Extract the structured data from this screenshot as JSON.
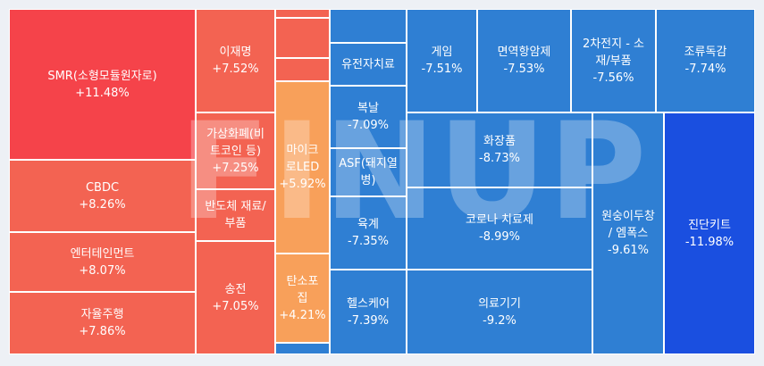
{
  "watermark": "FINUP",
  "chart_data": {
    "type": "treemap",
    "groups": [
      {
        "column": "rise-col-1",
        "items": [
          {
            "name": "SMR(소형모듈원자로)",
            "value": "+11.48%",
            "color": "#f5434a"
          },
          {
            "name": "CBDC",
            "value": "+8.26%",
            "color": "#f36352"
          },
          {
            "name": "엔터테인먼트",
            "value": "+8.07%",
            "color": "#f36352"
          },
          {
            "name": "자율주행",
            "value": "+7.86%",
            "color": "#f36352"
          }
        ]
      },
      {
        "column": "rise-col-2",
        "items": [
          {
            "name": "이재명",
            "value": "+7.52%",
            "color": "#f36352"
          },
          {
            "name": "가상화폐(비트코인 등)",
            "value": "+7.25%",
            "color": "#f36352"
          },
          {
            "name": "반도체 재료/부품",
            "value": "",
            "color": "#f36352"
          },
          {
            "name": "송전",
            "value": "+7.05%",
            "color": "#f36352"
          }
        ]
      },
      {
        "column": "rise-col-3",
        "items": [
          {
            "name": "",
            "value": "",
            "color": "#f36352"
          },
          {
            "name": "",
            "value": "",
            "color": "#f36352"
          },
          {
            "name": "",
            "value": "",
            "color": "#f36352"
          },
          {
            "name": "마이크로LED",
            "value": "+5.92%",
            "color": "#f8a05a"
          },
          {
            "name": "탄소포집",
            "value": "+4.21%",
            "color": "#f8a05a"
          },
          {
            "name": "",
            "value": "",
            "color": "#2f7fd3"
          }
        ]
      },
      {
        "column": "fall-col-1",
        "items": [
          {
            "name": "",
            "value": "",
            "color": "#2f7fd3"
          },
          {
            "name": "유전자치료",
            "value": "",
            "color": "#2f7fd3"
          },
          {
            "name": "복날",
            "value": "-7.09%",
            "color": "#2f7fd3"
          },
          {
            "name": "ASF(돼지열병)",
            "value": "",
            "color": "#2f7fd3"
          },
          {
            "name": "육계",
            "value": "-7.35%",
            "color": "#2f7fd3"
          },
          {
            "name": "헬스케어",
            "value": "-7.39%",
            "color": "#2f7fd3"
          }
        ]
      },
      {
        "column": "fall-top-row",
        "items": [
          {
            "name": "게임",
            "value": "-7.51%",
            "color": "#2f7fd3"
          },
          {
            "name": "면역항암제",
            "value": "-7.53%",
            "color": "#2f7fd3"
          },
          {
            "name": "2차전지 - 소재/부품",
            "value": "-7.56%",
            "color": "#2f7fd3"
          },
          {
            "name": "조류독감",
            "value": "-7.74%",
            "color": "#2f7fd3"
          }
        ]
      },
      {
        "column": "fall-main",
        "items": [
          {
            "name": "화장품",
            "value": "-8.73%",
            "color": "#2f7fd3"
          },
          {
            "name": "코로나 치료제",
            "value": "-8.99%",
            "color": "#2f7fd3"
          },
          {
            "name": "의료기기",
            "value": "-9.2%",
            "color": "#2f7fd3"
          },
          {
            "name": "원숭이두창 / 엠폭스",
            "value": "-9.61%",
            "color": "#2f7fd3"
          },
          {
            "name": "진단키트",
            "value": "-11.98%",
            "color": "#1a4fe0"
          }
        ]
      }
    ]
  }
}
